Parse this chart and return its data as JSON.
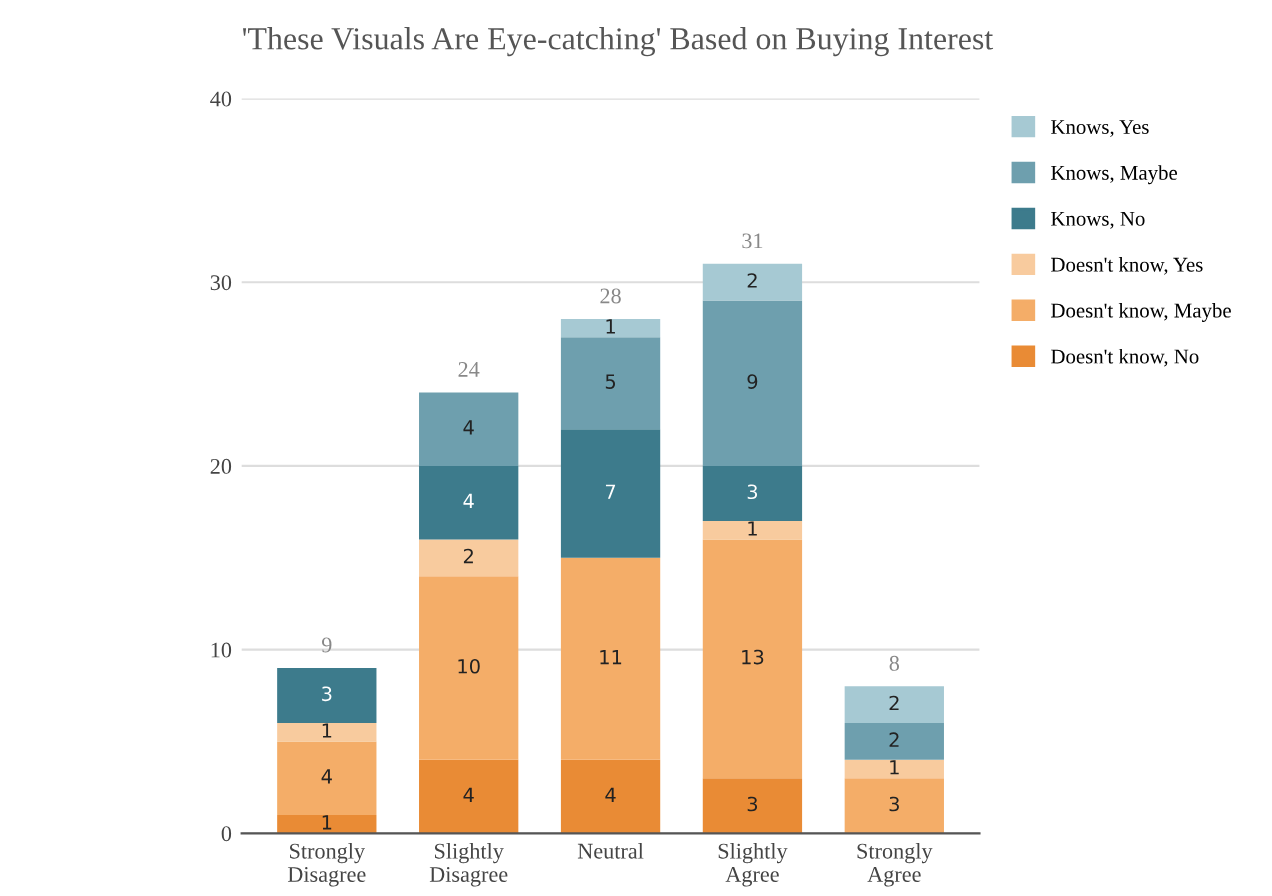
{
  "chart_data": {
    "type": "bar",
    "title": "'These Visuals Are Eye-catching' Based on Buying Interest",
    "categories": [
      "Strongly\nDisagree",
      "Slightly\nDisagree",
      "Neutral",
      "Slightly\nAgree",
      "Strongly\nAgree"
    ],
    "stacked": true,
    "data_labels": true,
    "legend": "right",
    "grid": "y",
    "ylim": [
      0,
      40
    ],
    "yticks": [
      0,
      10,
      20,
      30,
      40
    ],
    "totals": [
      "9",
      "24",
      "28",
      "31",
      "8"
    ],
    "series": [
      {
        "name": "Doesn't know, No",
        "color": "#e98b35",
        "values": [
          1,
          4,
          4,
          3,
          null
        ]
      },
      {
        "name": "Doesn't know, Maybe",
        "color": "#f4ad68",
        "values": [
          4,
          10,
          11,
          13,
          3
        ]
      },
      {
        "name": "Doesn't know, Yes",
        "color": "#f8cb9e",
        "values": [
          1,
          2,
          null,
          1,
          1
        ]
      },
      {
        "name": "Knows, No",
        "color": "#3d7b8c",
        "values": [
          3,
          4,
          7,
          3,
          null
        ]
      },
      {
        "name": "Knows, Maybe",
        "color": "#6e9fae",
        "values": [
          null,
          4,
          5,
          9,
          2
        ]
      },
      {
        "name": "Knows, Yes",
        "color": "#a6c9d3",
        "values": [
          null,
          null,
          1,
          2,
          2
        ]
      }
    ]
  }
}
